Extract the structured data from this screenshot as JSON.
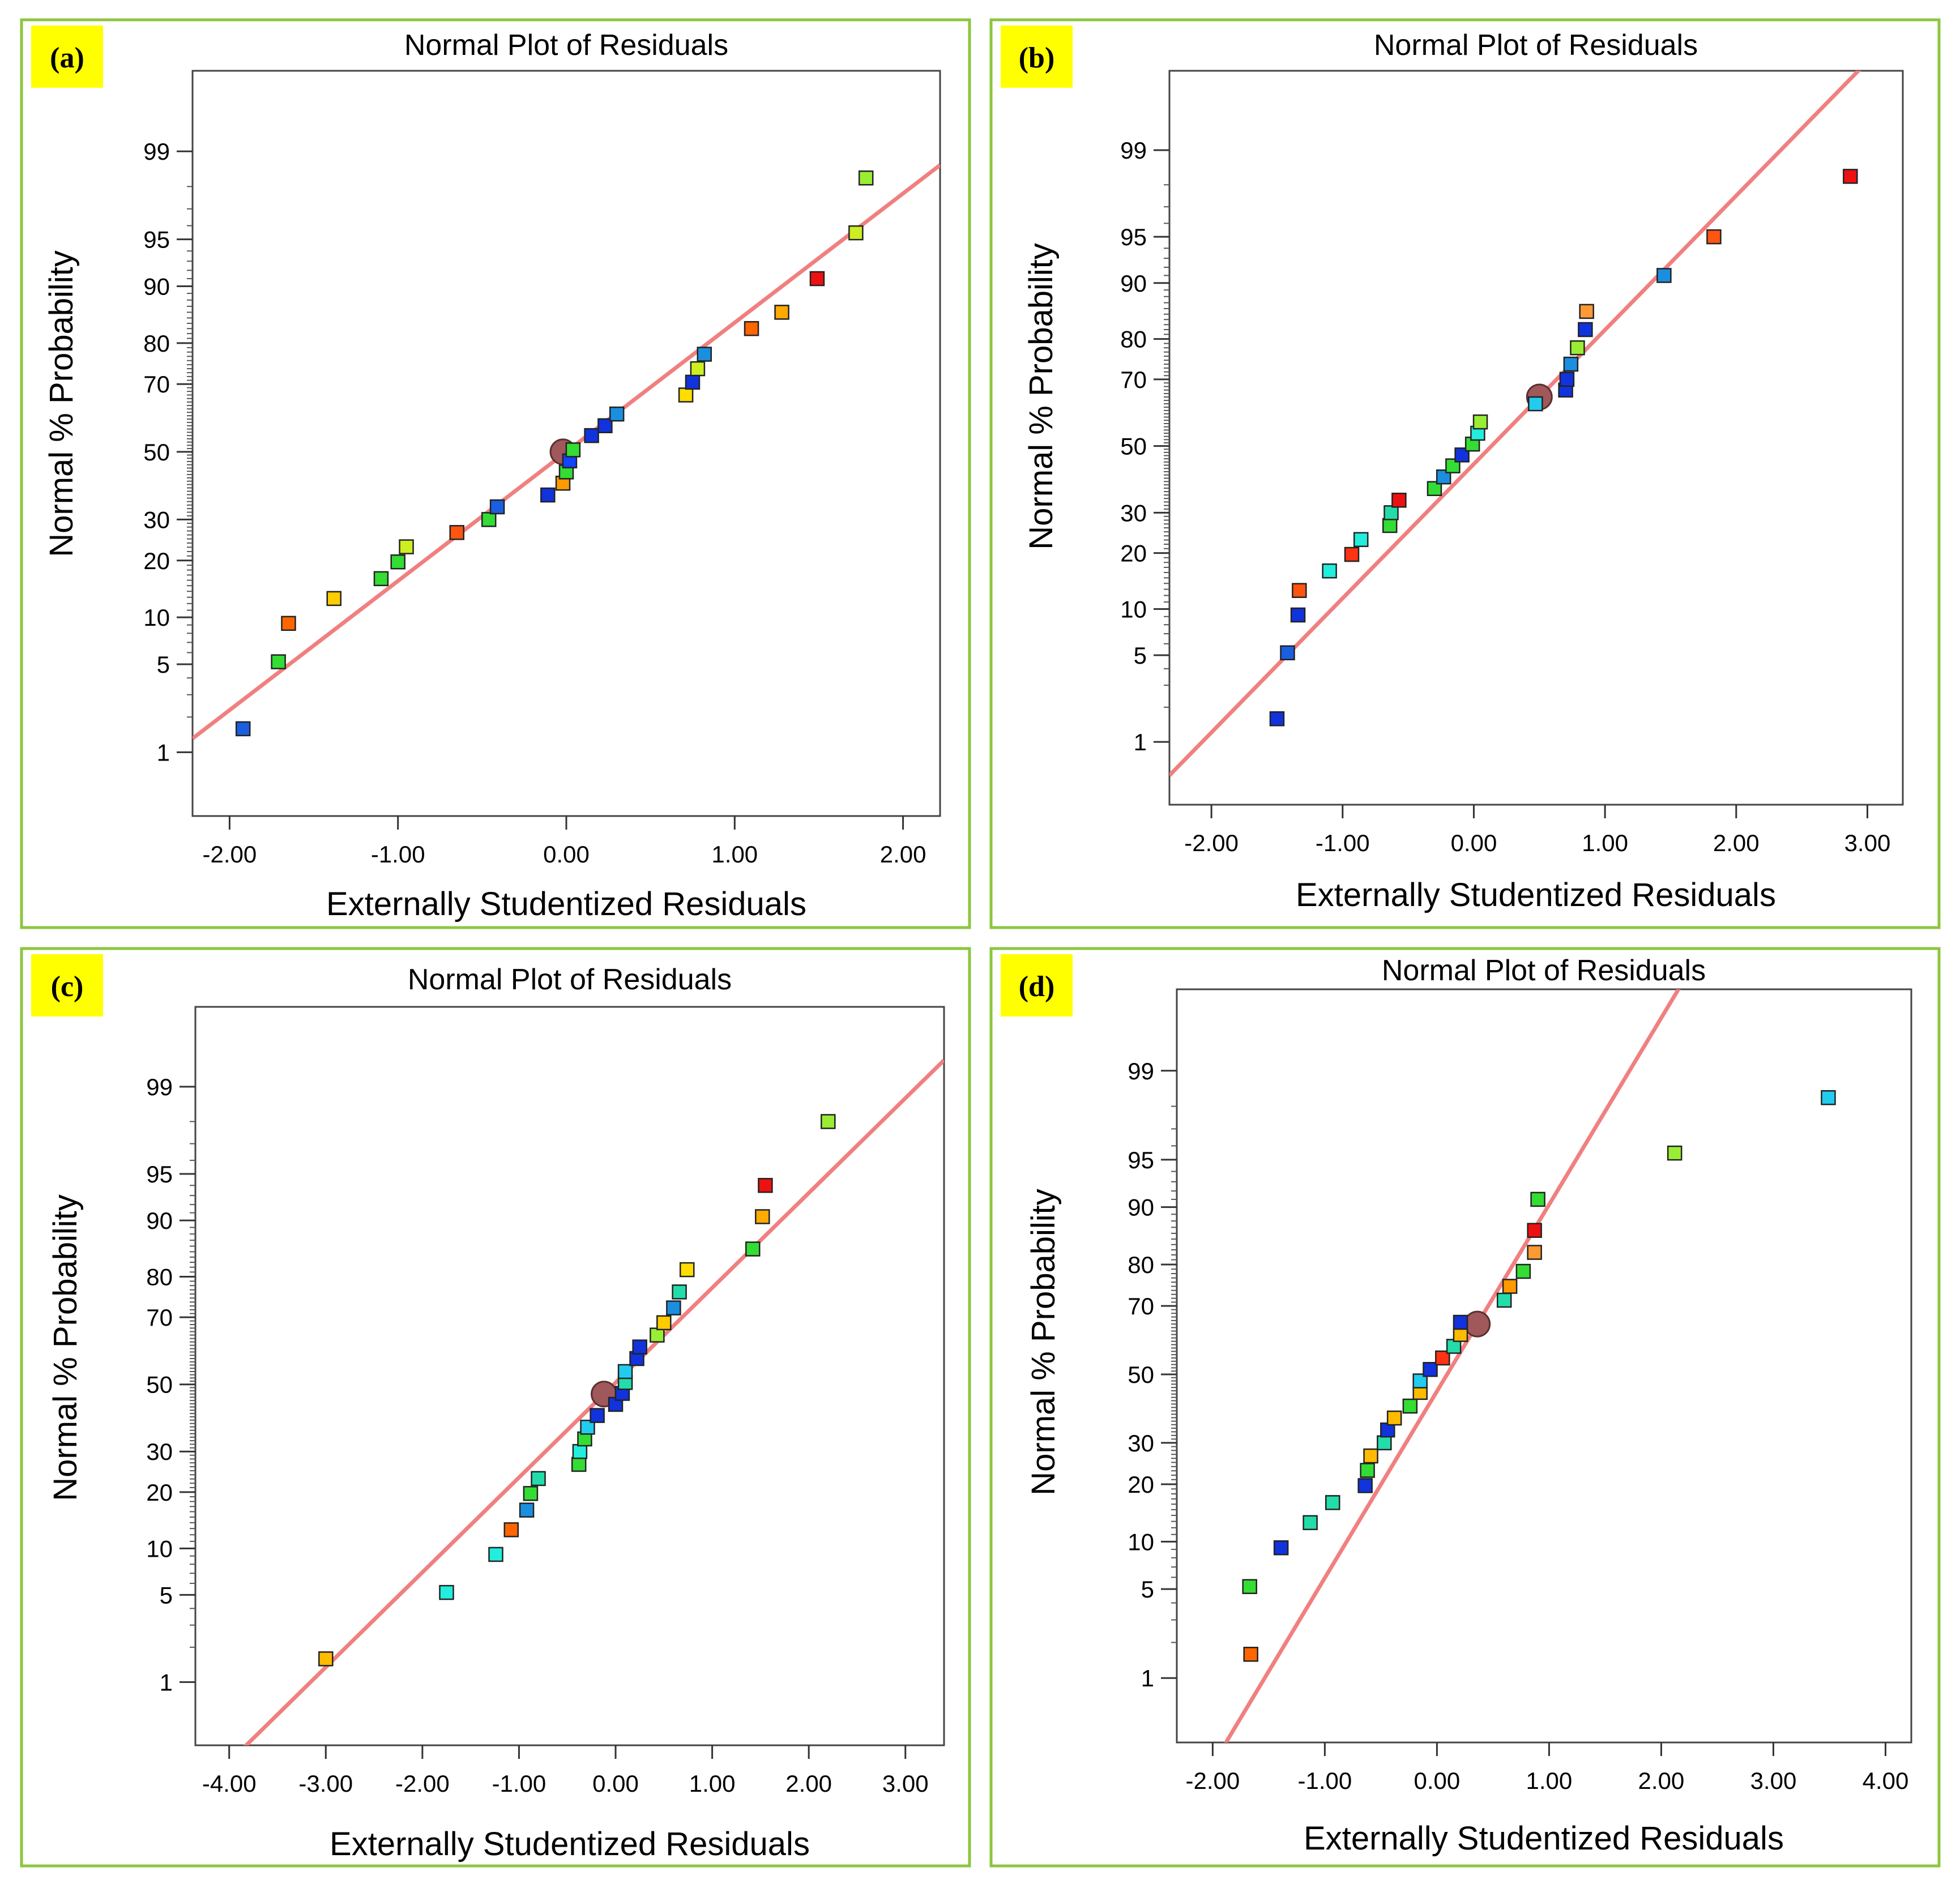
{
  "figure": {
    "colors": {
      "border": "#8cc63f",
      "tag_bg": "#ffff00",
      "line": "#f08080",
      "center": "#a0585a"
    },
    "panels": [
      {
        "tag": "(a)",
        "chart_data": {
          "type": "scatter",
          "title": "Normal Plot of Residuals",
          "xlabel": "Externally Studentized Residuals",
          "ylabel": "Normal % Probability",
          "xlim": [
            -2.22,
            2.22
          ],
          "xticks": [
            -2,
            -1,
            0,
            1,
            2
          ],
          "xtick_labels": [
            "-2.00",
            "-1.00",
            "0.00",
            "1.00",
            "2.00"
          ],
          "yticks": [
            1,
            5,
            10,
            20,
            30,
            50,
            70,
            80,
            90,
            95,
            99
          ],
          "fit_line": {
            "x0": 0,
            "y0": 50,
            "slope": 1
          },
          "center_point": {
            "x": -0.02,
            "y": 50
          },
          "points": [
            {
              "x": -1.92,
              "y": 1.6,
              "color": "#1a5fe0"
            },
            {
              "x": -1.71,
              "y": 5.2,
              "color": "#33dd33"
            },
            {
              "x": -1.65,
              "y": 9.2,
              "color": "#ff6600"
            },
            {
              "x": -1.38,
              "y": 12.8,
              "color": "#ffcc00"
            },
            {
              "x": -1.1,
              "y": 16.3,
              "color": "#33dd33"
            },
            {
              "x": -1.0,
              "y": 19.7,
              "color": "#33dd33"
            },
            {
              "x": -0.95,
              "y": 23.1,
              "color": "#ccee22"
            },
            {
              "x": -0.65,
              "y": 26.6,
              "color": "#ff5511"
            },
            {
              "x": -0.46,
              "y": 30.0,
              "color": "#33dd33"
            },
            {
              "x": -0.41,
              "y": 33.5,
              "color": "#1a5fe0"
            },
            {
              "x": -0.11,
              "y": 36.9,
              "color": "#1133dd"
            },
            {
              "x": -0.02,
              "y": 40.4,
              "color": "#ff9900"
            },
            {
              "x": 0.0,
              "y": 43.8,
              "color": "#33dd33"
            },
            {
              "x": 0.02,
              "y": 47.2,
              "color": "#1144ff"
            },
            {
              "x": 0.04,
              "y": 50.6,
              "color": "#33dd33"
            },
            {
              "x": 0.15,
              "y": 55.0,
              "color": "#1133dd"
            },
            {
              "x": 0.23,
              "y": 58.0,
              "color": "#1133dd"
            },
            {
              "x": 0.3,
              "y": 61.5,
              "color": "#1a8fe0"
            },
            {
              "x": 0.71,
              "y": 67.0,
              "color": "#ffdd00"
            },
            {
              "x": 0.75,
              "y": 70.5,
              "color": "#1133dd"
            },
            {
              "x": 0.78,
              "y": 74.0,
              "color": "#ccee22"
            },
            {
              "x": 0.82,
              "y": 77.5,
              "color": "#1a8fe0"
            },
            {
              "x": 1.1,
              "y": 83.0,
              "color": "#ff6600"
            },
            {
              "x": 1.28,
              "y": 86.0,
              "color": "#ffaa00"
            },
            {
              "x": 1.49,
              "y": 91.0,
              "color": "#ee1111"
            },
            {
              "x": 1.72,
              "y": 95.5,
              "color": "#ccee22"
            },
            {
              "x": 1.78,
              "y": 98.3,
              "color": "#99ee33"
            }
          ]
        }
      },
      {
        "tag": "(b)",
        "chart_data": {
          "type": "scatter",
          "title": "Normal Plot of Residuals",
          "xlabel": "Externally Studentized Residuals",
          "ylabel": "Normal % Probability",
          "xlim": [
            -2.32,
            3.27
          ],
          "xticks": [
            -2,
            -1,
            0,
            1,
            2,
            3
          ],
          "xtick_labels": [
            "-2.00",
            "-1.00",
            "0.00",
            "1.00",
            "2.00",
            "3.00"
          ],
          "yticks": [
            1,
            5,
            10,
            20,
            30,
            50,
            70,
            80,
            90,
            95,
            99
          ],
          "fit_line": {
            "x0": 0.5,
            "y0": 65,
            "slope": 1.055
          },
          "center_point": {
            "x": 0.5,
            "y": 65
          },
          "points": [
            {
              "x": -1.5,
              "y": 1.6,
              "color": "#1133dd"
            },
            {
              "x": -1.42,
              "y": 5.2,
              "color": "#1a5fe0"
            },
            {
              "x": -1.34,
              "y": 9.2,
              "color": "#1133dd"
            },
            {
              "x": -1.33,
              "y": 12.8,
              "color": "#ff5511"
            },
            {
              "x": -1.1,
              "y": 16.3,
              "color": "#22eedd"
            },
            {
              "x": -0.93,
              "y": 19.7,
              "color": "#ff3311"
            },
            {
              "x": -0.86,
              "y": 23.1,
              "color": "#22eedd"
            },
            {
              "x": -0.64,
              "y": 26.6,
              "color": "#33dd33"
            },
            {
              "x": -0.63,
              "y": 30.0,
              "color": "#22ddaa"
            },
            {
              "x": -0.57,
              "y": 33.5,
              "color": "#ee1111"
            },
            {
              "x": -0.3,
              "y": 36.9,
              "color": "#33dd33"
            },
            {
              "x": -0.23,
              "y": 40.4,
              "color": "#1a8fe0"
            },
            {
              "x": -0.16,
              "y": 43.8,
              "color": "#33dd33"
            },
            {
              "x": -0.09,
              "y": 47.2,
              "color": "#1133dd"
            },
            {
              "x": -0.01,
              "y": 50.6,
              "color": "#33dd33"
            },
            {
              "x": 0.03,
              "y": 54.0,
              "color": "#22eedd"
            },
            {
              "x": 0.05,
              "y": 57.5,
              "color": "#99ee33"
            },
            {
              "x": 0.47,
              "y": 63.0,
              "color": "#22ccee"
            },
            {
              "x": 0.7,
              "y": 67.0,
              "color": "#1133dd"
            },
            {
              "x": 0.71,
              "y": 70.0,
              "color": "#1133dd"
            },
            {
              "x": 0.74,
              "y": 74.0,
              "color": "#1a8fe0"
            },
            {
              "x": 0.79,
              "y": 78.0,
              "color": "#99ee33"
            },
            {
              "x": 0.85,
              "y": 82.0,
              "color": "#1133dd"
            },
            {
              "x": 0.86,
              "y": 85.5,
              "color": "#ff9933"
            },
            {
              "x": 1.45,
              "y": 91.0,
              "color": "#1a8fe0"
            },
            {
              "x": 1.83,
              "y": 95.0,
              "color": "#ff5511"
            },
            {
              "x": 2.87,
              "y": 98.3,
              "color": "#ee1111"
            }
          ]
        }
      },
      {
        "tag": "(c)",
        "chart_data": {
          "type": "scatter",
          "title": "Normal Plot of Residuals",
          "xlabel": "Externally Studentized Residuals",
          "ylabel": "Normal % Probability",
          "xlim": [
            -4.35,
            3.4
          ],
          "xticks": [
            -4,
            -3,
            -2,
            -1,
            0,
            1,
            2,
            3
          ],
          "xtick_labels": [
            "-4.00",
            "-3.00",
            "-2.00",
            "-1.00",
            "0.00",
            "1.00",
            "2.00",
            "3.00"
          ],
          "yticks": [
            1,
            5,
            10,
            20,
            30,
            50,
            70,
            80,
            90,
            95,
            99
          ],
          "fit_line": {
            "x0": -0.12,
            "y0": 47,
            "slope": 0.741
          },
          "center_point": {
            "x": -0.12,
            "y": 47
          },
          "points": [
            {
              "x": -3.0,
              "y": 1.6,
              "color": "#ffbb00"
            },
            {
              "x": -1.75,
              "y": 5.2,
              "color": "#22eedd"
            },
            {
              "x": -1.24,
              "y": 9.2,
              "color": "#22eedd"
            },
            {
              "x": -1.08,
              "y": 12.8,
              "color": "#ff6600"
            },
            {
              "x": -0.92,
              "y": 16.3,
              "color": "#1a8fe0"
            },
            {
              "x": -0.88,
              "y": 19.7,
              "color": "#33dd33"
            },
            {
              "x": -0.8,
              "y": 23.1,
              "color": "#22ddaa"
            },
            {
              "x": -0.38,
              "y": 26.6,
              "color": "#33dd33"
            },
            {
              "x": -0.37,
              "y": 30.0,
              "color": "#22eedd"
            },
            {
              "x": -0.32,
              "y": 33.5,
              "color": "#33dd33"
            },
            {
              "x": -0.29,
              "y": 36.9,
              "color": "#22ccee"
            },
            {
              "x": -0.19,
              "y": 40.4,
              "color": "#1133dd"
            },
            {
              "x": 0.0,
              "y": 43.8,
              "color": "#1133dd"
            },
            {
              "x": 0.07,
              "y": 47.2,
              "color": "#1133dd"
            },
            {
              "x": 0.1,
              "y": 50.6,
              "color": "#22ddaa"
            },
            {
              "x": 0.1,
              "y": 54.0,
              "color": "#22ccee"
            },
            {
              "x": 0.22,
              "y": 58.0,
              "color": "#1133dd"
            },
            {
              "x": 0.25,
              "y": 61.5,
              "color": "#1133dd"
            },
            {
              "x": 0.43,
              "y": 65.0,
              "color": "#99ee33"
            },
            {
              "x": 0.5,
              "y": 68.5,
              "color": "#ffcc00"
            },
            {
              "x": 0.6,
              "y": 72.5,
              "color": "#1a8fe0"
            },
            {
              "x": 0.66,
              "y": 76.5,
              "color": "#22ddaa"
            },
            {
              "x": 0.74,
              "y": 81.5,
              "color": "#ffdd00"
            },
            {
              "x": 1.42,
              "y": 85.5,
              "color": "#33dd33"
            },
            {
              "x": 1.52,
              "y": 90.5,
              "color": "#ffaa00"
            },
            {
              "x": 1.55,
              "y": 94.0,
              "color": "#ee1111"
            },
            {
              "x": 2.2,
              "y": 98.0,
              "color": "#99ee33"
            }
          ]
        }
      },
      {
        "tag": "(d)",
        "chart_data": {
          "type": "scatter",
          "title": "Normal Plot of Residuals",
          "xlabel": "Externally Studentized Residuals",
          "ylabel": "Normal % Probability",
          "xlim": [
            -2.32,
            4.23
          ],
          "xticks": [
            -2,
            -1,
            0,
            1,
            2,
            3,
            4
          ],
          "xtick_labels": [
            "-2.00",
            "-1.00",
            "0.00",
            "1.00",
            "2.00",
            "3.00",
            "4.00"
          ],
          "yticks": [
            1,
            5,
            10,
            20,
            30,
            50,
            70,
            80,
            90,
            95,
            99
          ],
          "fit_line": {
            "x0": 0.36,
            "y0": 65,
            "slope": 1.43
          },
          "center_point": {
            "x": 0.36,
            "y": 65
          },
          "points": [
            {
              "x": -1.66,
              "y": 1.6,
              "color": "#ff6600"
            },
            {
              "x": -1.67,
              "y": 5.2,
              "color": "#33dd33"
            },
            {
              "x": -1.39,
              "y": 9.2,
              "color": "#1133dd"
            },
            {
              "x": -1.13,
              "y": 12.8,
              "color": "#22ddaa"
            },
            {
              "x": -0.93,
              "y": 16.3,
              "color": "#22ddaa"
            },
            {
              "x": -0.64,
              "y": 19.7,
              "color": "#1133dd"
            },
            {
              "x": -0.62,
              "y": 23.1,
              "color": "#33dd33"
            },
            {
              "x": -0.59,
              "y": 26.6,
              "color": "#ffbb00"
            },
            {
              "x": -0.47,
              "y": 30.0,
              "color": "#22ddaa"
            },
            {
              "x": -0.44,
              "y": 33.5,
              "color": "#1133dd"
            },
            {
              "x": -0.38,
              "y": 36.9,
              "color": "#ffbb00"
            },
            {
              "x": -0.24,
              "y": 40.4,
              "color": "#33dd33"
            },
            {
              "x": -0.15,
              "y": 44.5,
              "color": "#ffbb00"
            },
            {
              "x": -0.15,
              "y": 48.0,
              "color": "#22ccee"
            },
            {
              "x": -0.06,
              "y": 51.5,
              "color": "#1133dd"
            },
            {
              "x": 0.05,
              "y": 55.0,
              "color": "#ff3311"
            },
            {
              "x": 0.15,
              "y": 58.5,
              "color": "#22ddaa"
            },
            {
              "x": 0.21,
              "y": 62.0,
              "color": "#ffbb00"
            },
            {
              "x": 0.21,
              "y": 65.5,
              "color": "#1133dd"
            },
            {
              "x": 0.6,
              "y": 71.5,
              "color": "#22ddaa"
            },
            {
              "x": 0.65,
              "y": 75.0,
              "color": "#ff9900"
            },
            {
              "x": 0.77,
              "y": 78.5,
              "color": "#33dd33"
            },
            {
              "x": 0.87,
              "y": 82.5,
              "color": "#ff9933"
            },
            {
              "x": 0.87,
              "y": 86.5,
              "color": "#ee1111"
            },
            {
              "x": 0.9,
              "y": 91.0,
              "color": "#33dd33"
            },
            {
              "x": 2.12,
              "y": 95.5,
              "color": "#99ee33"
            },
            {
              "x": 3.49,
              "y": 98.3,
              "color": "#22ccee"
            }
          ]
        }
      }
    ]
  }
}
